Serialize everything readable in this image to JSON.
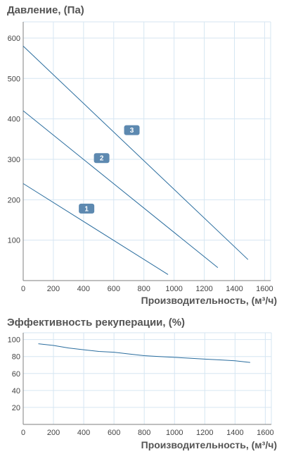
{
  "colors": {
    "line": "#2a6d9e",
    "grid": "#d6e6f2",
    "badge": "#5d89b0",
    "text": "#555555"
  },
  "chart_data": [
    {
      "type": "line",
      "title": "Давление, (Па)",
      "xlabel": "Производительность, (м³/ч)",
      "ylabel": "",
      "xlim": [
        0,
        1640
      ],
      "ylim": [
        0,
        640
      ],
      "x_ticks": [
        0,
        200,
        400,
        600,
        800,
        1000,
        1200,
        1400,
        1600
      ],
      "y_ticks": [
        100,
        200,
        300,
        400,
        500,
        600
      ],
      "grid": true,
      "series": [
        {
          "name": "1",
          "x": [
            0,
            960
          ],
          "y": [
            240,
            15
          ],
          "label_at": [
            420,
            178
          ]
        },
        {
          "name": "2",
          "x": [
            0,
            1290
          ],
          "y": [
            420,
            32
          ],
          "label_at": [
            520,
            303
          ]
        },
        {
          "name": "3",
          "x": [
            0,
            1490
          ],
          "y": [
            580,
            52
          ],
          "label_at": [
            720,
            372
          ]
        }
      ]
    },
    {
      "type": "line",
      "title": "Эффективность рекуперации, (%)",
      "xlabel": "Производительность, (м³/ч)",
      "ylabel": "",
      "xlim": [
        0,
        1640
      ],
      "ylim": [
        0,
        108
      ],
      "x_ticks": [
        0,
        200,
        400,
        600,
        800,
        1000,
        1200,
        1400,
        1600
      ],
      "y_ticks": [
        20,
        40,
        60,
        80,
        100
      ],
      "grid": true,
      "series": [
        {
          "x": [
            100,
            200,
            300,
            400,
            500,
            600,
            700,
            800,
            900,
            1000,
            1100,
            1200,
            1300,
            1400,
            1500
          ],
          "y": [
            95,
            93,
            90,
            88,
            86,
            85,
            83,
            81,
            80,
            79,
            78,
            77,
            76,
            75,
            73
          ]
        }
      ]
    }
  ]
}
